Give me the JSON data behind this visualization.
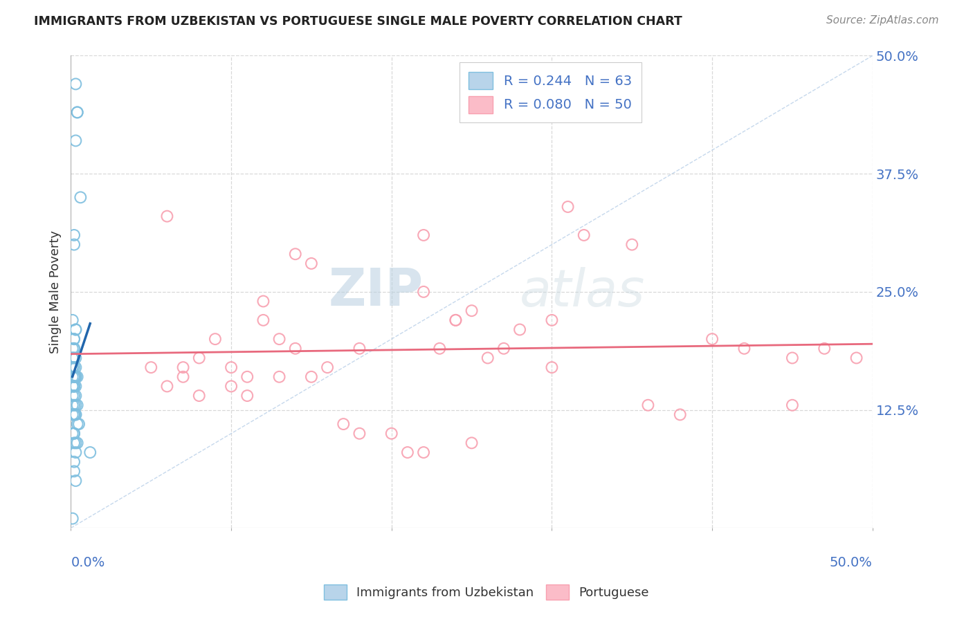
{
  "title": "IMMIGRANTS FROM UZBEKISTAN VS PORTUGUESE SINGLE MALE POVERTY CORRELATION CHART",
  "source": "Source: ZipAtlas.com",
  "ylabel": "Single Male Poverty",
  "ytick_labels": [
    "50.0%",
    "37.5%",
    "25.0%",
    "12.5%"
  ],
  "ytick_values": [
    0.5,
    0.375,
    0.25,
    0.125
  ],
  "xlim": [
    0.0,
    0.5
  ],
  "ylim": [
    0.0,
    0.5
  ],
  "legend_r1": "R = 0.244",
  "legend_n1": "N = 63",
  "legend_r2": "R = 0.080",
  "legend_n2": "N = 50",
  "color_uzbek": "#7fbfdf",
  "color_portuguese": "#f8a0b0",
  "color_trendline_uzbek": "#2166ac",
  "color_trendline_portuguese": "#e8697d",
  "color_diagonal": "#b8cfe8",
  "color_grid": "#d8d8d8",
  "color_title": "#222222",
  "color_source": "#888888",
  "color_axis_labels": "#4472c4",
  "watermark_zip": "ZIP",
  "watermark_atlas": "atlas",
  "uzbek_x": [
    0.003,
    0.004,
    0.004,
    0.003,
    0.006,
    0.002,
    0.002,
    0.001,
    0.003,
    0.003,
    0.002,
    0.002,
    0.001,
    0.002,
    0.002,
    0.001,
    0.001,
    0.002,
    0.003,
    0.001,
    0.001,
    0.002,
    0.003,
    0.001,
    0.003,
    0.003,
    0.002,
    0.004,
    0.003,
    0.002,
    0.002,
    0.001,
    0.001,
    0.002,
    0.002,
    0.002,
    0.003,
    0.003,
    0.002,
    0.001,
    0.001,
    0.002,
    0.003,
    0.004,
    0.002,
    0.002,
    0.003,
    0.001,
    0.003,
    0.004,
    0.005,
    0.002,
    0.001,
    0.002,
    0.002,
    0.003,
    0.004,
    0.012,
    0.003,
    0.002,
    0.002,
    0.003,
    0.001
  ],
  "uzbek_y": [
    0.47,
    0.44,
    0.44,
    0.41,
    0.35,
    0.31,
    0.3,
    0.22,
    0.21,
    0.21,
    0.2,
    0.2,
    0.19,
    0.19,
    0.19,
    0.18,
    0.18,
    0.18,
    0.18,
    0.17,
    0.17,
    0.17,
    0.17,
    0.16,
    0.16,
    0.16,
    0.16,
    0.16,
    0.16,
    0.16,
    0.15,
    0.15,
    0.15,
    0.15,
    0.15,
    0.15,
    0.15,
    0.14,
    0.14,
    0.14,
    0.13,
    0.13,
    0.13,
    0.13,
    0.12,
    0.12,
    0.12,
    0.12,
    0.12,
    0.11,
    0.11,
    0.1,
    0.1,
    0.1,
    0.09,
    0.09,
    0.09,
    0.08,
    0.08,
    0.07,
    0.06,
    0.05,
    0.01
  ],
  "portuguese_x": [
    0.06,
    0.14,
    0.15,
    0.22,
    0.22,
    0.24,
    0.25,
    0.27,
    0.3,
    0.31,
    0.05,
    0.06,
    0.07,
    0.07,
    0.08,
    0.08,
    0.09,
    0.1,
    0.1,
    0.11,
    0.11,
    0.12,
    0.12,
    0.13,
    0.13,
    0.14,
    0.15,
    0.16,
    0.17,
    0.18,
    0.18,
    0.2,
    0.21,
    0.22,
    0.23,
    0.24,
    0.25,
    0.26,
    0.28,
    0.3,
    0.32,
    0.35,
    0.36,
    0.38,
    0.4,
    0.42,
    0.45,
    0.45,
    0.47,
    0.49
  ],
  "portuguese_y": [
    0.33,
    0.29,
    0.28,
    0.31,
    0.25,
    0.22,
    0.23,
    0.19,
    0.22,
    0.34,
    0.17,
    0.15,
    0.17,
    0.16,
    0.14,
    0.18,
    0.2,
    0.17,
    0.15,
    0.14,
    0.16,
    0.22,
    0.24,
    0.2,
    0.16,
    0.19,
    0.16,
    0.17,
    0.11,
    0.1,
    0.19,
    0.1,
    0.08,
    0.08,
    0.19,
    0.22,
    0.09,
    0.18,
    0.21,
    0.17,
    0.31,
    0.3,
    0.13,
    0.12,
    0.2,
    0.19,
    0.18,
    0.13,
    0.19,
    0.18
  ]
}
